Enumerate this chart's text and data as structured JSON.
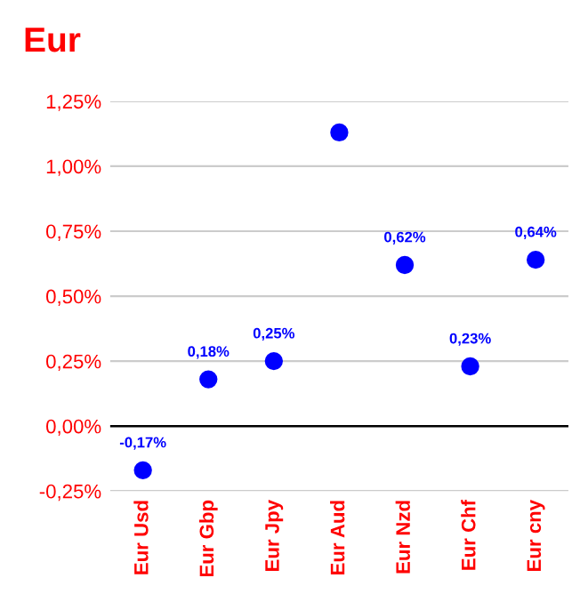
{
  "chart_data": {
    "type": "scatter",
    "title": "Eur",
    "categories": [
      "Eur Usd",
      "Eur Gbp",
      "Eur Jpy",
      "Eur Aud",
      "Eur Nzd",
      "Eur Chf",
      "Eur cny"
    ],
    "series": [
      {
        "color": "#0000ff",
        "values": [
          -0.17,
          0.18,
          0.25,
          1.13,
          0.62,
          0.23,
          0.64
        ],
        "value_labels": [
          "-0,17%",
          "0,18%",
          "0,25%",
          null,
          "0,62%",
          "0,23%",
          "0,64%"
        ]
      }
    ],
    "ylim": [
      -0.25,
      1.25
    ],
    "yticks": [
      {
        "value": -0.25,
        "label": "-0,25%"
      },
      {
        "value": 0,
        "label": "0,00%"
      },
      {
        "value": 0.25,
        "label": "0,25%"
      },
      {
        "value": 0.5,
        "label": "0,50%"
      },
      {
        "value": 0.75,
        "label": "0,75%"
      },
      {
        "value": 1.0,
        "label": "1,00%"
      },
      {
        "value": 1.25,
        "label": "1,25%"
      }
    ],
    "grid": "y",
    "marker": "circle",
    "ref_lines": [
      {
        "axis": "y",
        "value": 0,
        "color": "#000000"
      }
    ]
  }
}
